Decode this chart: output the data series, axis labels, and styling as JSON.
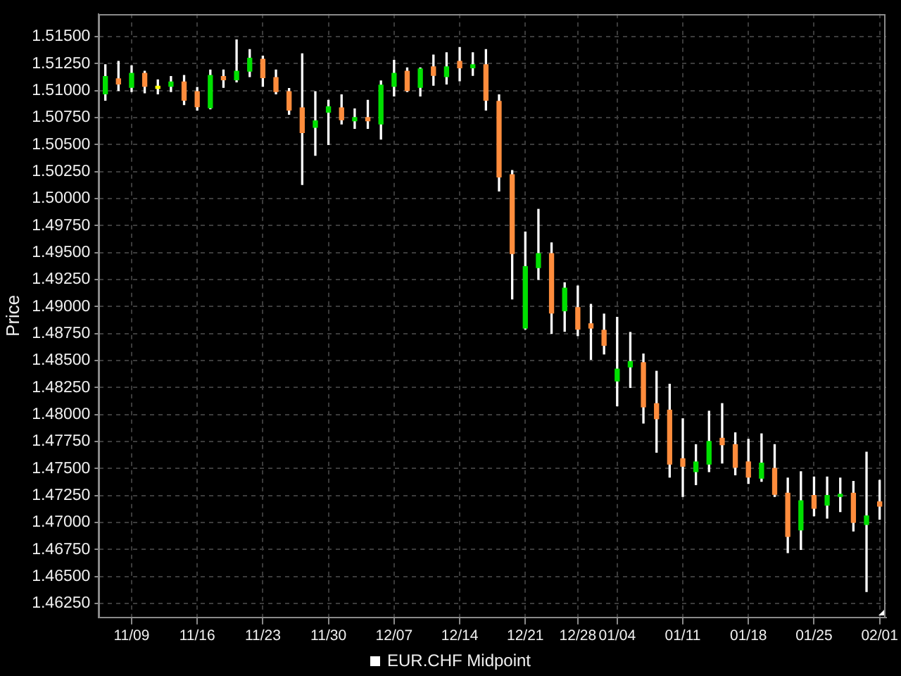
{
  "chart_data": {
    "type": "candlestick",
    "ylabel": "Price",
    "categories": [
      null,
      null,
      "11/09",
      null,
      null,
      null,
      null,
      "11/16",
      null,
      null,
      null,
      null,
      "11/23",
      null,
      null,
      null,
      null,
      "11/30",
      null,
      null,
      null,
      null,
      "12/07",
      null,
      null,
      null,
      null,
      "12/14",
      null,
      null,
      null,
      null,
      "12/21",
      null,
      null,
      null,
      "12/28",
      null,
      null,
      "01/04",
      null,
      null,
      null,
      null,
      "01/11",
      null,
      null,
      null,
      null,
      "01/18",
      null,
      null,
      null,
      null,
      "01/25",
      null,
      null,
      null,
      null,
      "02/01"
    ],
    "series": [
      {
        "name": "EUR.CHF Midpoint",
        "color": "#ffffff",
        "colors": [
          "#00e000",
          "#ff8c3c",
          "#00e000",
          "#ff8c3c",
          "#ffff00",
          "#00e000",
          "#ff8c3c",
          "#ff8c3c",
          "#00e000",
          "#ff8c3c",
          "#00e000",
          "#00e000",
          "#ff8c3c",
          "#ff8c3c",
          "#ff8c3c",
          "#ff8c3c",
          "#00e000",
          "#00e000",
          "#ff8c3c",
          "#00e000",
          "#ff8c3c",
          "#00e000",
          "#00e000",
          "#ff8c3c",
          "#00e000",
          "#ff8c3c",
          "#00e000",
          "#ff8c3c",
          "#00e000",
          "#ff8c3c",
          "#ff8c3c",
          "#ff8c3c",
          "#00e000",
          "#00e000",
          "#ff8c3c",
          "#00e000",
          "#ff8c3c",
          "#ff8c3c",
          "#ff8c3c",
          "#00e000",
          "#00e000",
          "#ff8c3c",
          "#ff8c3c",
          "#ff8c3c",
          "#ff8c3c",
          "#00e000",
          "#00e000",
          "#ff8c3c",
          "#ff8c3c",
          "#ff8c3c",
          "#00e000",
          "#ff8c3c",
          "#ff8c3c",
          "#00e000",
          "#ff8c3c",
          "#00e000",
          "#00e000",
          "#ff8c3c",
          "#00e000",
          "#ff8c3c"
        ],
        "ohlc": [
          [
            1.5097,
            1.5124,
            1.5091,
            1.5113
          ],
          [
            1.5111,
            1.5127,
            1.51,
            1.5106
          ],
          [
            1.5103,
            1.5123,
            1.5099,
            1.5116
          ],
          [
            1.5116,
            1.5118,
            1.5098,
            1.5104
          ],
          [
            1.5104,
            1.511,
            1.5097,
            1.5102
          ],
          [
            1.5104,
            1.5113,
            1.5099,
            1.5108
          ],
          [
            1.5108,
            1.5114,
            1.5087,
            1.5091
          ],
          [
            1.5099,
            1.5103,
            1.5082,
            1.5085
          ],
          [
            1.5084,
            1.5119,
            1.5083,
            1.5114
          ],
          [
            1.5113,
            1.5119,
            1.5103,
            1.511
          ],
          [
            1.511,
            1.5147,
            1.5108,
            1.5118
          ],
          [
            1.5118,
            1.5138,
            1.5113,
            1.513
          ],
          [
            1.5129,
            1.5132,
            1.5104,
            1.5112
          ],
          [
            1.5112,
            1.5119,
            1.5097,
            1.5099
          ],
          [
            1.5099,
            1.5102,
            1.5078,
            1.5082
          ],
          [
            1.5084,
            1.5134,
            1.5013,
            1.5061
          ],
          [
            1.5066,
            1.5099,
            1.504,
            1.5072
          ],
          [
            1.508,
            1.5091,
            1.505,
            1.5085
          ],
          [
            1.5084,
            1.5096,
            1.5069,
            1.5073
          ],
          [
            1.5072,
            1.5083,
            1.5065,
            1.5075
          ],
          [
            1.5075,
            1.5091,
            1.5065,
            1.5072
          ],
          [
            1.5069,
            1.5109,
            1.5055,
            1.5105
          ],
          [
            1.5104,
            1.5128,
            1.5095,
            1.5116
          ],
          [
            1.5118,
            1.5121,
            1.5099,
            1.51
          ],
          [
            1.5103,
            1.5121,
            1.5095,
            1.512
          ],
          [
            1.5122,
            1.5133,
            1.5105,
            1.5114
          ],
          [
            1.5113,
            1.5135,
            1.5106,
            1.5122
          ],
          [
            1.5127,
            1.514,
            1.5109,
            1.5121
          ],
          [
            1.5121,
            1.5135,
            1.5114,
            1.5124
          ],
          [
            1.5124,
            1.5138,
            1.5082,
            1.5091
          ],
          [
            1.509,
            1.5096,
            1.5007,
            1.502
          ],
          [
            1.5022,
            1.5026,
            1.4907,
            1.4949
          ],
          [
            1.488,
            1.4969,
            1.4879,
            1.4937
          ],
          [
            1.4936,
            1.499,
            1.4925,
            1.4949
          ],
          [
            1.4949,
            1.4959,
            1.4875,
            1.4894
          ],
          [
            1.4896,
            1.4922,
            1.4877,
            1.4917
          ],
          [
            1.4899,
            1.4919,
            1.4873,
            1.4879
          ],
          [
            1.4884,
            1.4902,
            1.4851,
            1.488
          ],
          [
            1.4878,
            1.4893,
            1.4856,
            1.4864
          ],
          [
            1.4831,
            1.489,
            1.4808,
            1.4842
          ],
          [
            1.4844,
            1.4876,
            1.4825,
            1.4849
          ],
          [
            1.4848,
            1.4856,
            1.4792,
            1.4807
          ],
          [
            1.481,
            1.484,
            1.4765,
            1.4796
          ],
          [
            1.4804,
            1.4828,
            1.4742,
            1.4754
          ],
          [
            1.4759,
            1.4796,
            1.4724,
            1.4752
          ],
          [
            1.4747,
            1.4772,
            1.4735,
            1.4756
          ],
          [
            1.4754,
            1.4803,
            1.4747,
            1.4775
          ],
          [
            1.4778,
            1.481,
            1.4755,
            1.4772
          ],
          [
            1.4772,
            1.4783,
            1.4744,
            1.4751
          ],
          [
            1.4756,
            1.4777,
            1.4736,
            1.4742
          ],
          [
            1.4741,
            1.4782,
            1.4738,
            1.4755
          ],
          [
            1.475,
            1.4772,
            1.4724,
            1.4726
          ],
          [
            1.4727,
            1.4741,
            1.4672,
            1.4687
          ],
          [
            1.4693,
            1.4747,
            1.4675,
            1.472
          ],
          [
            1.4725,
            1.4742,
            1.4706,
            1.4713
          ],
          [
            1.4716,
            1.4742,
            1.4704,
            1.4725
          ],
          [
            1.4724,
            1.4741,
            1.471,
            1.4726
          ],
          [
            1.4727,
            1.4738,
            1.4692,
            1.47
          ],
          [
            1.4698,
            1.4765,
            1.4636,
            1.4706
          ],
          [
            1.4719,
            1.4739,
            1.4703,
            1.4715
          ]
        ]
      }
    ],
    "ylim": [
      1.4612,
      1.5171
    ],
    "yticks": [
      {
        "value": 1.4625,
        "label": "1.46250"
      },
      {
        "value": 1.465,
        "label": "1.46500"
      },
      {
        "value": 1.4675,
        "label": "1.46750"
      },
      {
        "value": 1.47,
        "label": "1.47000"
      },
      {
        "value": 1.4725,
        "label": "1.47250"
      },
      {
        "value": 1.475,
        "label": "1.47500"
      },
      {
        "value": 1.4775,
        "label": "1.47750"
      },
      {
        "value": 1.48,
        "label": "1.48000"
      },
      {
        "value": 1.4825,
        "label": "1.48250"
      },
      {
        "value": 1.485,
        "label": "1.48500"
      },
      {
        "value": 1.4875,
        "label": "1.48750"
      },
      {
        "value": 1.49,
        "label": "1.49000"
      },
      {
        "value": 1.4925,
        "label": "1.49250"
      },
      {
        "value": 1.495,
        "label": "1.49500"
      },
      {
        "value": 1.4975,
        "label": "1.49750"
      },
      {
        "value": 1.5,
        "label": "1.50000"
      },
      {
        "value": 1.5025,
        "label": "1.50250"
      },
      {
        "value": 1.505,
        "label": "1.50500"
      },
      {
        "value": 1.5075,
        "label": "1.50750"
      },
      {
        "value": 1.51,
        "label": "1.51000"
      },
      {
        "value": 1.5125,
        "label": "1.51250"
      },
      {
        "value": 1.515,
        "label": "1.51500"
      }
    ],
    "grid": true,
    "legend": "bottom"
  }
}
